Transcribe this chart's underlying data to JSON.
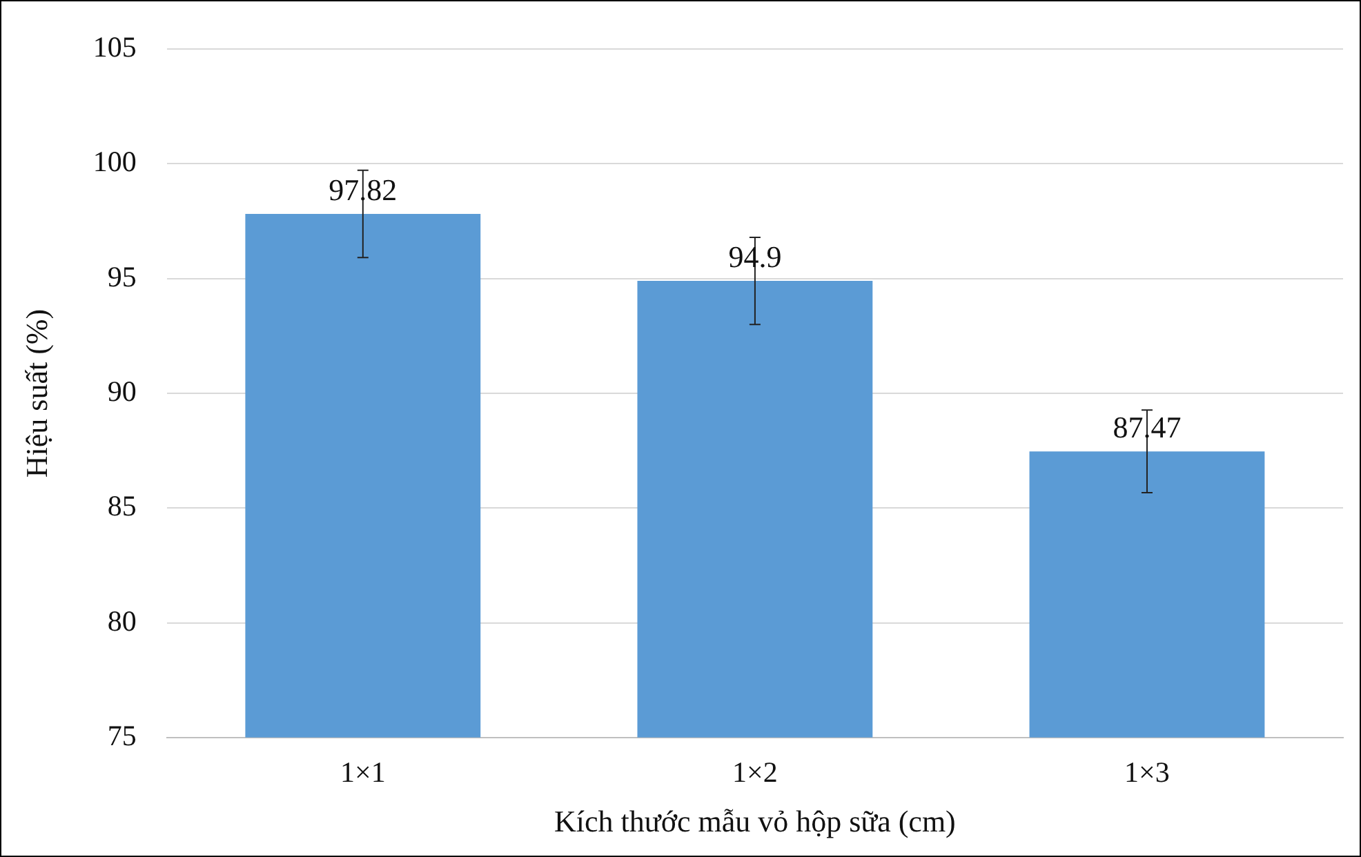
{
  "chart_data": {
    "type": "bar",
    "xlabel": "Kích thước mẫu vỏ hộp sữa (cm)",
    "ylabel": "Hiệu suất (%)",
    "categories": [
      "1×1",
      "1×2",
      "1×3"
    ],
    "values": [
      97.82,
      94.9,
      87.47
    ],
    "errors": [
      1.9,
      1.9,
      1.8
    ],
    "color": "#5b9bd5",
    "ylim": [
      75,
      105
    ],
    "yticks": [
      75,
      80,
      85,
      90,
      95,
      100,
      105
    ],
    "grid": "y",
    "data_labels": true,
    "legend": false
  }
}
